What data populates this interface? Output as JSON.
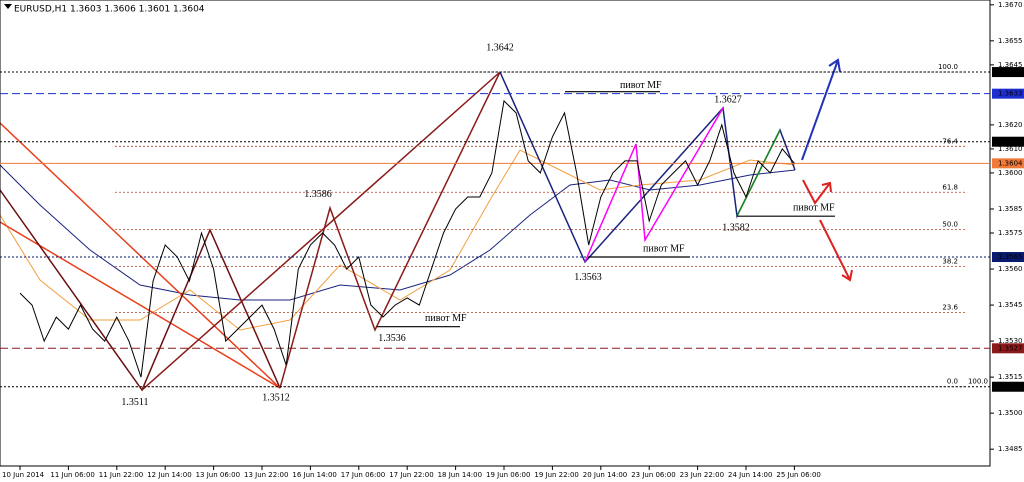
{
  "chart_data": {
    "type": "line",
    "title": "EURUSD,H1 1.3603 1.3606 1.3601 1.3604",
    "categories": [
      "10 Jun 2014",
      null,
      null,
      null,
      "11 Jun 06:00",
      null,
      null,
      null,
      "11 Jun 22:00",
      null,
      null,
      null,
      "12 Jun 14:00",
      null,
      null,
      null,
      "13 Jun 06:00",
      null,
      null,
      null,
      "13 Jun 22:00",
      null,
      null,
      null,
      "16 Jun 14:00",
      null,
      null,
      null,
      "17 Jun 06:00",
      null,
      null,
      null,
      "17 Jun 22:00",
      null,
      null,
      null,
      "18 Jun 14:00",
      null,
      null,
      null,
      "19 Jun 06:00",
      null,
      null,
      null,
      "19 Jun 22:00",
      null,
      null,
      null,
      "20 Jun 14:00",
      null,
      null,
      null,
      "23 Jun 06:00",
      null,
      null,
      null,
      "23 Jun 22:00",
      null,
      null,
      null,
      "24 Jun 14:00",
      null,
      null,
      null,
      "25 Jun 06:00"
    ],
    "series": [
      {
        "name": "EURUSD",
        "color": "#000000",
        "values": [
          1.355,
          1.3545,
          1.353,
          1.354,
          1.3535,
          1.3545,
          1.3535,
          1.353,
          1.354,
          1.353,
          1.3515,
          1.3555,
          1.357,
          1.3565,
          1.3555,
          1.3575,
          1.356,
          1.353,
          1.3535,
          1.354,
          1.3545,
          1.3535,
          1.352,
          1.356,
          1.357,
          1.3575,
          1.357,
          1.356,
          1.3565,
          1.3545,
          1.354,
          1.3545,
          1.3548,
          1.3545,
          1.356,
          1.3575,
          1.3585,
          1.359,
          1.359,
          1.36,
          1.363,
          1.3625,
          1.3605,
          1.36,
          1.3615,
          1.3625,
          1.36,
          1.357,
          1.359,
          1.36,
          1.3605,
          1.3605,
          1.358,
          1.3595,
          1.36,
          1.3605,
          1.3595,
          1.3605,
          1.362,
          1.36,
          1.359,
          1.3605,
          1.36,
          1.361,
          1.3604
        ]
      }
    ],
    "ylim": [
      1.3478,
      1.3672
    ],
    "yticks": [
      {
        "value": 1.367,
        "label": "1.3670"
      },
      1.3655,
      1.3645,
      {
        "value": 1.362,
        "label": "1.3620"
      },
      {
        "value": 1.361,
        "label": "1.3610"
      },
      {
        "value": 1.36,
        "label": "1.3600"
      },
      1.3585,
      1.3575,
      {
        "value": 1.356,
        "label": "1.3560"
      },
      1.3545,
      {
        "value": 1.353,
        "label": "1.3530"
      },
      1.3515,
      {
        "value": 1.35,
        "label": "1.3500"
      },
      1.3485
    ],
    "levels": [
      {
        "value": 1.3642,
        "color": "#000000",
        "style": "dotted"
      },
      {
        "value": 1.3633,
        "color": "#1e2fd0",
        "style": "dashed"
      },
      {
        "value": 1.3613,
        "color": "#000000",
        "style": "dotted"
      },
      {
        "value": 1.3604,
        "color": "#f07a3a",
        "style": "solid"
      },
      {
        "value": 1.3565,
        "color": "#0a1a6e",
        "style": "dotted"
      },
      {
        "value": 1.3527,
        "color": "#8b1a1a",
        "style": "dashed"
      },
      {
        "value": 1.3511,
        "color": "#000000",
        "style": "dotted"
      }
    ],
    "fibonacci": {
      "low": 1.3511,
      "high": 1.3642,
      "color": "#b0402a",
      "levels": [
        100,
        76.4,
        61.8,
        50,
        38.2,
        23.6,
        0
      ],
      "level_labels": [
        "100.0",
        "76.4",
        "61.8",
        "50.0",
        "38.2",
        "23.6",
        "0.0"
      ],
      "reverse_levels": [
        100
      ],
      "reverse_level_labels": [
        "100.0"
      ]
    },
    "pivots": [
      1.3642,
      1.3627,
      1.3586,
      1.3582,
      1.3563,
      1.3536,
      1.3511,
      1.3512
    ],
    "pivot_labels": [
      "пивот MF",
      "пивот MF",
      "пивот MF",
      "пивот MF"
    ]
  }
}
